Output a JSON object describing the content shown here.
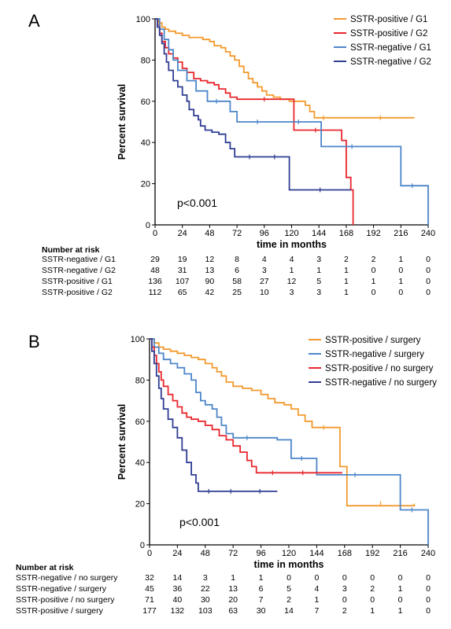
{
  "chart_data": [
    {
      "type": "line",
      "subtype": "kaplan-meier",
      "panel_label": "A",
      "xlabel": "time in months",
      "ylabel": "Percent survival",
      "xlim": [
        0,
        240
      ],
      "ylim": [
        0,
        100
      ],
      "xticks": [
        0,
        24,
        48,
        72,
        96,
        120,
        144,
        168,
        192,
        216,
        240
      ],
      "yticks": [
        0,
        20,
        40,
        60,
        80,
        100
      ],
      "annotation": "p<0.001",
      "legend_position": "top-right",
      "series": [
        {
          "name": "SSTR-positive / G1",
          "color": "#f39a2e",
          "points": [
            [
              0,
              100
            ],
            [
              3,
              98
            ],
            [
              6,
              96
            ],
            [
              9,
              95
            ],
            [
              12,
              94
            ],
            [
              18,
              93
            ],
            [
              24,
              92
            ],
            [
              30,
              91
            ],
            [
              36,
              91
            ],
            [
              42,
              90
            ],
            [
              48,
              89
            ],
            [
              52,
              87
            ],
            [
              58,
              86
            ],
            [
              62,
              84
            ],
            [
              66,
              82
            ],
            [
              70,
              80
            ],
            [
              74,
              77
            ],
            [
              78,
              74
            ],
            [
              82,
              71
            ],
            [
              86,
              69
            ],
            [
              90,
              67
            ],
            [
              94,
              65
            ],
            [
              98,
              63
            ],
            [
              104,
              62
            ],
            [
              110,
              61
            ],
            [
              118,
              60
            ],
            [
              126,
              60
            ],
            [
              132,
              58
            ],
            [
              136,
              55
            ],
            [
              140,
              52
            ],
            [
              156,
              52
            ],
            [
              168,
              52
            ],
            [
              228,
              52
            ]
          ]
        },
        {
          "name": "SSTR-positive / G2",
          "color": "#e8272d",
          "points": [
            [
              0,
              100
            ],
            [
              2,
              97
            ],
            [
              4,
              93
            ],
            [
              6,
              89
            ],
            [
              9,
              86
            ],
            [
              12,
              83
            ],
            [
              16,
              81
            ],
            [
              20,
              79
            ],
            [
              24,
              76
            ],
            [
              28,
              74
            ],
            [
              34,
              71
            ],
            [
              40,
              70
            ],
            [
              46,
              69
            ],
            [
              52,
              68
            ],
            [
              56,
              66
            ],
            [
              62,
              64
            ],
            [
              66,
              62
            ],
            [
              72,
              61
            ],
            [
              120,
              61
            ],
            [
              122,
              46
            ],
            [
              160,
              46
            ],
            [
              164,
              41
            ],
            [
              168,
              23
            ],
            [
              172,
              17
            ],
            [
              174,
              0
            ]
          ]
        },
        {
          "name": "SSTR-negative / G1",
          "color": "#4d86c9",
          "points": [
            [
              0,
              100
            ],
            [
              4,
              95
            ],
            [
              8,
              90
            ],
            [
              12,
              85
            ],
            [
              16,
              80
            ],
            [
              20,
              75
            ],
            [
              28,
              70
            ],
            [
              36,
              65
            ],
            [
              46,
              60
            ],
            [
              62,
              60
            ],
            [
              66,
              55
            ],
            [
              72,
              50
            ],
            [
              108,
              50
            ],
            [
              144,
              50
            ],
            [
              146,
              38
            ],
            [
              200,
              38
            ],
            [
              210,
              38
            ],
            [
              216,
              19
            ],
            [
              236,
              19
            ],
            [
              240,
              0
            ]
          ]
        },
        {
          "name": "SSTR-negative / G2",
          "color": "#2f3d93",
          "points": [
            [
              0,
              100
            ],
            [
              2,
              96
            ],
            [
              4,
              92
            ],
            [
              6,
              88
            ],
            [
              8,
              83
            ],
            [
              10,
              79
            ],
            [
              12,
              75
            ],
            [
              16,
              70
            ],
            [
              20,
              67
            ],
            [
              24,
              63
            ],
            [
              28,
              60
            ],
            [
              30,
              56
            ],
            [
              34,
              53
            ],
            [
              38,
              51
            ],
            [
              40,
              48
            ],
            [
              44,
              46
            ],
            [
              50,
              45
            ],
            [
              56,
              44
            ],
            [
              62,
              40
            ],
            [
              66,
              37
            ],
            [
              70,
              33
            ],
            [
              96,
              33
            ],
            [
              114,
              33
            ],
            [
              118,
              17
            ],
            [
              172,
              17
            ]
          ]
        }
      ],
      "risk_table": {
        "title": "Number at risk",
        "times": [
          0,
          24,
          48,
          72,
          96,
          120,
          144,
          168,
          192,
          216,
          240
        ],
        "rows": [
          {
            "label": "SSTR-negative / G1",
            "values": [
              "29",
              "19",
              "12",
              "8",
              "4",
              "4",
              "3",
              "2",
              "2",
              "1",
              "0"
            ]
          },
          {
            "label": "SSTR-negative / G2",
            "values": [
              "48",
              "31",
              "13",
              "6",
              "3",
              "1",
              "1",
              "1",
              "0",
              "0",
              "0"
            ]
          },
          {
            "label": "SSTR-positive / G1",
            "values": [
              "136",
              "107",
              "90",
              "58",
              "27",
              "12",
              "5",
              "1",
              "1",
              "1",
              "0"
            ]
          },
          {
            "label": "SSTR-positive / G2",
            "values": [
              "112",
              "65",
              "42",
              "25",
              "10",
              "3",
              "3",
              "1",
              "0",
              "0",
              "0"
            ]
          }
        ]
      }
    },
    {
      "type": "line",
      "subtype": "kaplan-meier",
      "panel_label": "B",
      "xlabel": "time in months",
      "ylabel": "Percent survival",
      "xlim": [
        0,
        240
      ],
      "ylim": [
        0,
        100
      ],
      "xticks": [
        0,
        24,
        48,
        72,
        96,
        120,
        144,
        168,
        192,
        216,
        240
      ],
      "yticks": [
        0,
        20,
        40,
        60,
        80,
        100
      ],
      "annotation": "p<0.001",
      "legend_position": "top-right",
      "series": [
        {
          "name": "SSTR-positive / surgery",
          "color": "#f39a2e",
          "points": [
            [
              0,
              100
            ],
            [
              4,
              98
            ],
            [
              8,
              96
            ],
            [
              12,
              95
            ],
            [
              18,
              94
            ],
            [
              24,
              93
            ],
            [
              30,
              92
            ],
            [
              36,
              91
            ],
            [
              42,
              90
            ],
            [
              48,
              88
            ],
            [
              54,
              86
            ],
            [
              58,
              84
            ],
            [
              62,
              82
            ],
            [
              66,
              79
            ],
            [
              72,
              77
            ],
            [
              80,
              76
            ],
            [
              88,
              75
            ],
            [
              96,
              73
            ],
            [
              102,
              71
            ],
            [
              108,
              69
            ],
            [
              116,
              68
            ],
            [
              122,
              66
            ],
            [
              128,
              63
            ],
            [
              134,
              60
            ],
            [
              140,
              57
            ],
            [
              160,
              57
            ],
            [
              164,
              38
            ],
            [
              170,
              19
            ],
            [
              228,
              20
            ]
          ]
        },
        {
          "name": "SSTR-negative / surgery",
          "color": "#4d86c9",
          "points": [
            [
              0,
              100
            ],
            [
              4,
              96
            ],
            [
              8,
              93
            ],
            [
              12,
              90
            ],
            [
              18,
              88
            ],
            [
              24,
              86
            ],
            [
              30,
              83
            ],
            [
              36,
              80
            ],
            [
              40,
              74
            ],
            [
              44,
              70
            ],
            [
              48,
              68
            ],
            [
              54,
              66
            ],
            [
              58,
              62
            ],
            [
              62,
              58
            ],
            [
              66,
              54
            ],
            [
              72,
              52
            ],
            [
              96,
              52
            ],
            [
              110,
              51
            ],
            [
              120,
              51
            ],
            [
              122,
              42
            ],
            [
              140,
              42
            ],
            [
              144,
              34
            ],
            [
              210,
              34
            ],
            [
              216,
              17
            ],
            [
              236,
              17
            ],
            [
              240,
              0
            ]
          ]
        },
        {
          "name": "SSTR-positive / no surgery",
          "color": "#e8272d",
          "points": [
            [
              0,
              100
            ],
            [
              2,
              96
            ],
            [
              4,
              92
            ],
            [
              6,
              88
            ],
            [
              8,
              84
            ],
            [
              10,
              80
            ],
            [
              12,
              77
            ],
            [
              16,
              73
            ],
            [
              20,
              70
            ],
            [
              24,
              67
            ],
            [
              28,
              64
            ],
            [
              32,
              62
            ],
            [
              36,
              61
            ],
            [
              42,
              60
            ],
            [
              48,
              58
            ],
            [
              54,
              56
            ],
            [
              60,
              53
            ],
            [
              66,
              51
            ],
            [
              72,
              48
            ],
            [
              78,
              45
            ],
            [
              84,
              41
            ],
            [
              88,
              38
            ],
            [
              92,
              35
            ],
            [
              120,
              35
            ],
            [
              144,
              35
            ],
            [
              156,
              35
            ],
            [
              166,
              35
            ]
          ]
        },
        {
          "name": "SSTR-negative / no surgery",
          "color": "#2f3d93",
          "points": [
            [
              0,
              100
            ],
            [
              2,
              94
            ],
            [
              4,
              88
            ],
            [
              6,
              82
            ],
            [
              8,
              76
            ],
            [
              10,
              71
            ],
            [
              12,
              66
            ],
            [
              16,
              61
            ],
            [
              20,
              57
            ],
            [
              24,
              52
            ],
            [
              28,
              46
            ],
            [
              32,
              40
            ],
            [
              36,
              34
            ],
            [
              40,
              30
            ],
            [
              42,
              26
            ],
            [
              60,
              26
            ],
            [
              80,
              26
            ],
            [
              110,
              26
            ]
          ]
        }
      ],
      "risk_table": {
        "title": "Number at risk",
        "times": [
          0,
          24,
          48,
          72,
          96,
          120,
          144,
          168,
          192,
          216,
          240
        ],
        "rows": [
          {
            "label": "SSTR-negative / no surgery",
            "values": [
              "32",
              "14",
              "3",
              "1",
              "1",
              "0",
              "0",
              "0",
              "0",
              "0",
              "0"
            ]
          },
          {
            "label": "SSTR-negative / surgery",
            "values": [
              "45",
              "36",
              "22",
              "13",
              "6",
              "5",
              "4",
              "3",
              "2",
              "1",
              "0"
            ]
          },
          {
            "label": "SSTR-positive / no surgery",
            "values": [
              "71",
              "40",
              "30",
              "20",
              "7",
              "2",
              "1",
              "0",
              "0",
              "0",
              "0"
            ]
          },
          {
            "label": "SSTR-positive / surgery",
            "values": [
              "177",
              "132",
              "103",
              "63",
              "30",
              "14",
              "7",
              "2",
              "1",
              "1",
              "0"
            ]
          }
        ]
      }
    }
  ]
}
